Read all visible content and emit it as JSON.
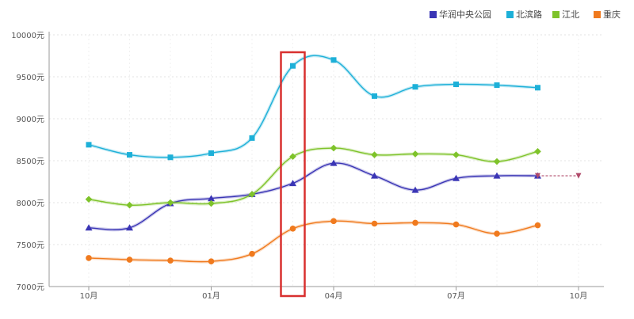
{
  "chart_data": {
    "type": "line",
    "title": "",
    "xlabel": "",
    "ylabel": "",
    "ylim": [
      7000,
      10000
    ],
    "yticks": [
      {
        "value": 7000,
        "label": "7000元"
      },
      {
        "value": 7500,
        "label": "7500元"
      },
      {
        "value": 8000,
        "label": "8000元"
      },
      {
        "value": 8500,
        "label": "8500元"
      },
      {
        "value": 9000,
        "label": "9000元"
      },
      {
        "value": 9500,
        "label": "9500元"
      },
      {
        "value": 10000,
        "label": "10000元"
      }
    ],
    "xrange": [
      -1,
      12
    ],
    "xticks": [
      {
        "index": 0,
        "label": "10月"
      },
      {
        "index": 3,
        "label": "01月"
      },
      {
        "index": 6,
        "label": "04月"
      },
      {
        "index": 9,
        "label": "07月"
      },
      {
        "index": 12,
        "label": "10月"
      }
    ],
    "legend_position": "top-right",
    "series": [
      {
        "name": "华润中央公园",
        "color": "#3a35b5",
        "marker": "triangle",
        "values": [
          7700,
          7700,
          7990,
          8050,
          8100,
          8230,
          8470,
          8320,
          8150,
          8290,
          8320,
          8320
        ],
        "forecast": 8320
      },
      {
        "name": "北滨路",
        "color": "#1db0d8",
        "marker": "square",
        "values": [
          8690,
          8570,
          8540,
          8590,
          8770,
          9630,
          9700,
          9270,
          9380,
          9410,
          9400,
          9370
        ]
      },
      {
        "name": "江北",
        "color": "#7ec32a",
        "marker": "diamond",
        "values": [
          8040,
          7970,
          8000,
          7990,
          8100,
          8550,
          8650,
          8570,
          8580,
          8570,
          8490,
          8610
        ]
      },
      {
        "name": "重庆",
        "color": "#f07a1e",
        "marker": "circle",
        "values": [
          7340,
          7320,
          7310,
          7300,
          7390,
          7690,
          7780,
          7750,
          7760,
          7740,
          7630,
          7730
        ]
      }
    ],
    "highlight": {
      "index": 5,
      "color": "#d8302f"
    }
  }
}
